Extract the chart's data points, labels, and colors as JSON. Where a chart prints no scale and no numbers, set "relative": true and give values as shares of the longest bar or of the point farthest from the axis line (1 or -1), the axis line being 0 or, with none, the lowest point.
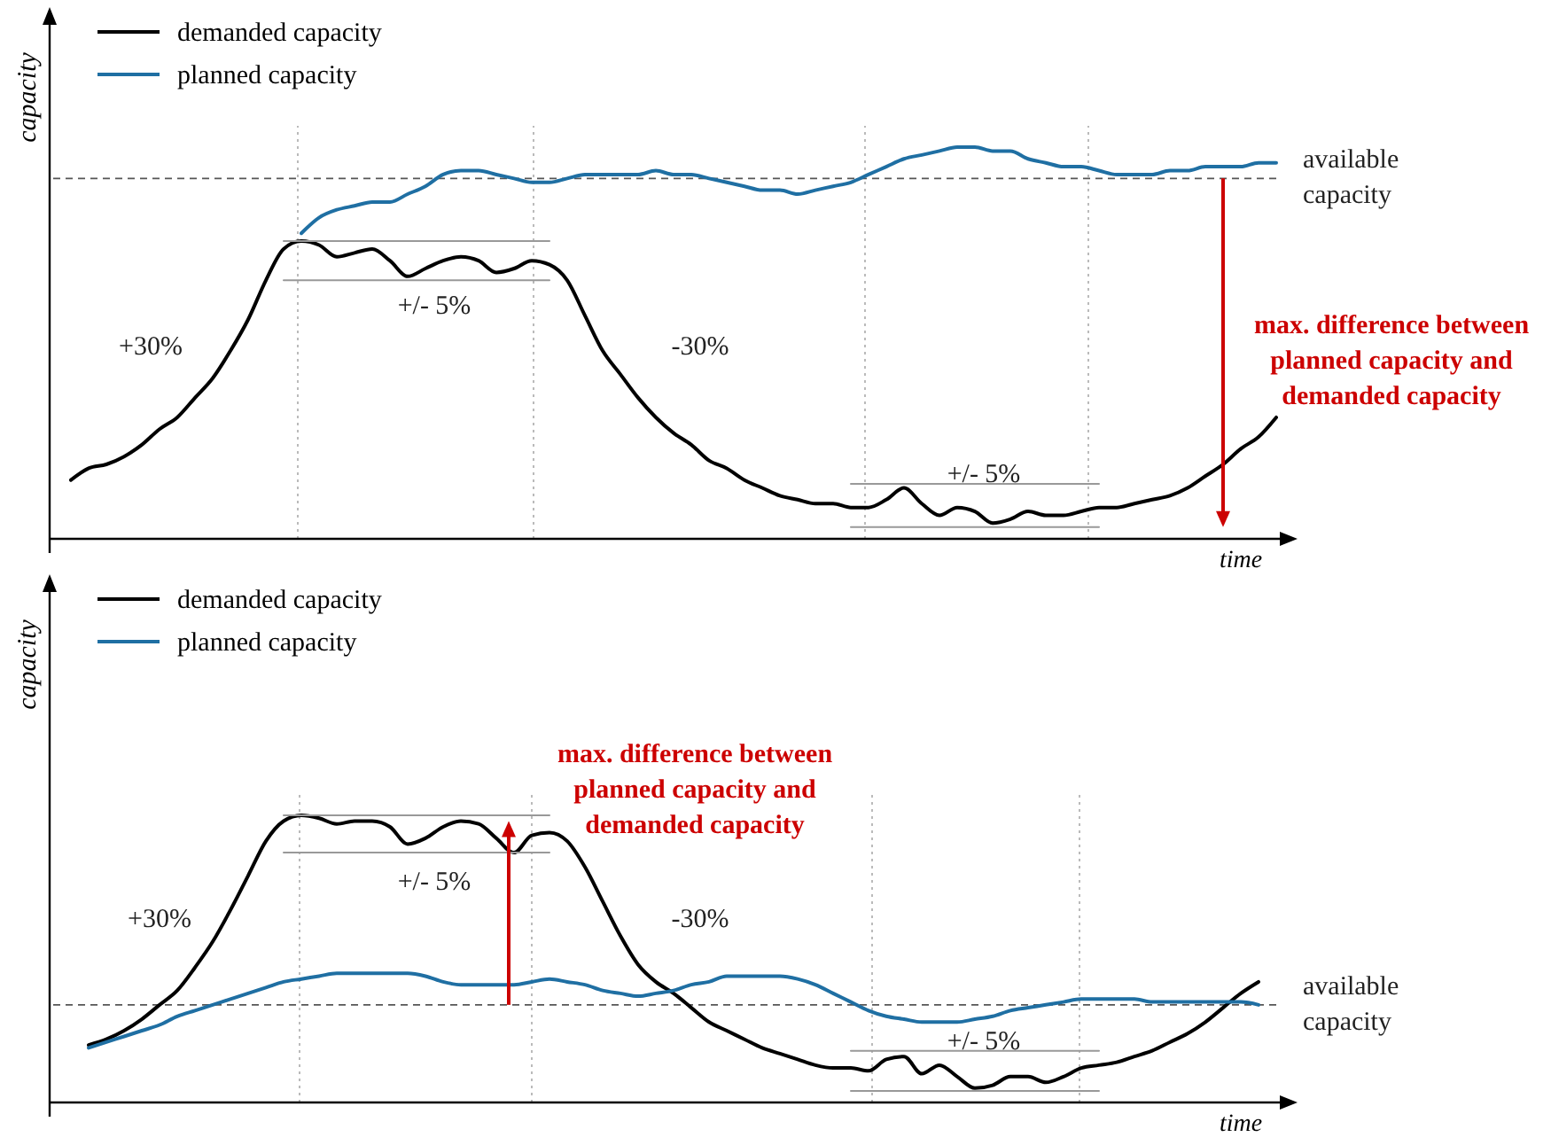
{
  "chart_data": [
    {
      "type": "line",
      "relative": true,
      "xlabel": "time",
      "ylabel": "capacity",
      "legend": "top left",
      "grid": "x",
      "categories": [
        null,
        null,
        null,
        null,
        null,
        null,
        null,
        null,
        null,
        null,
        null,
        null,
        null,
        null,
        null,
        null,
        null,
        null,
        null,
        null,
        null,
        null,
        null,
        null,
        null,
        null,
        null,
        null,
        null,
        null,
        null,
        null,
        null,
        null,
        null,
        null,
        null,
        null,
        null,
        null,
        null,
        null,
        null,
        null,
        null,
        null,
        null,
        null,
        null,
        null,
        null,
        null,
        null,
        null,
        null,
        null,
        null,
        null,
        null,
        null,
        null,
        null,
        null,
        null,
        null,
        null,
        null,
        null,
        null,
        null
      ],
      "series": [
        {
          "name": "demanded capacity",
          "color": "#000000",
          "values": [
            null,
            0.15,
            0.18,
            0.19,
            0.21,
            0.24,
            0.28,
            0.31,
            0.36,
            0.41,
            0.48,
            0.56,
            0.66,
            0.74,
            0.76,
            0.75,
            0.72,
            0.73,
            0.74,
            0.71,
            0.67,
            0.69,
            0.71,
            0.72,
            0.71,
            0.68,
            0.69,
            0.71,
            0.7,
            0.66,
            0.57,
            0.48,
            0.42,
            0.36,
            0.31,
            0.27,
            0.24,
            0.2,
            0.18,
            0.15,
            0.13,
            0.11,
            0.1,
            0.09,
            0.09,
            0.08,
            0.08,
            0.1,
            0.13,
            0.09,
            0.06,
            0.08,
            0.07,
            0.04,
            0.05,
            0.07,
            0.06,
            0.06,
            0.07,
            0.08,
            0.08,
            0.09,
            0.1,
            0.11,
            0.13,
            0.16,
            0.19,
            0.23,
            0.26,
            0.31
          ]
        },
        {
          "name": "planned capacity",
          "color": "#1f6fa3",
          "values": [
            null,
            null,
            null,
            null,
            null,
            null,
            null,
            null,
            null,
            null,
            null,
            null,
            null,
            null,
            0.78,
            0.82,
            0.84,
            0.85,
            0.86,
            0.86,
            0.88,
            0.9,
            0.93,
            0.94,
            0.94,
            0.93,
            0.92,
            0.91,
            0.91,
            0.92,
            0.93,
            0.93,
            0.93,
            0.93,
            0.94,
            0.93,
            0.93,
            0.92,
            0.91,
            0.9,
            0.89,
            0.89,
            0.88,
            0.89,
            0.9,
            0.91,
            0.93,
            0.95,
            0.97,
            0.98,
            0.99,
            1.0,
            1.0,
            0.99,
            0.99,
            0.97,
            0.96,
            0.95,
            0.95,
            0.94,
            0.93,
            0.93,
            0.93,
            0.94,
            0.94,
            0.95,
            0.95,
            0.95,
            0.96,
            0.96
          ]
        },
        {
          "color": "#999999",
          "values": [
            null,
            null,
            null,
            null,
            null,
            null,
            null,
            null,
            null,
            null,
            null,
            null,
            null,
            0.76,
            0.76,
            0.76,
            0.76,
            0.76,
            0.76,
            0.76,
            0.76,
            0.76,
            0.76,
            0.76,
            0.76,
            0.76,
            0.76,
            0.76,
            0.76,
            null,
            null,
            null,
            null,
            null,
            null,
            null,
            null,
            null,
            null,
            null,
            null,
            null,
            null,
            null,
            null,
            null,
            null,
            null,
            null,
            null,
            null,
            null,
            null,
            null,
            null,
            null,
            null,
            null,
            null,
            null,
            null,
            null,
            null,
            null,
            null,
            null,
            null,
            null,
            null,
            null
          ]
        },
        {
          "color": "#999999",
          "values": [
            null,
            null,
            null,
            null,
            null,
            null,
            null,
            null,
            null,
            null,
            null,
            null,
            null,
            0.66,
            0.66,
            0.66,
            0.66,
            0.66,
            0.66,
            0.66,
            0.66,
            0.66,
            0.66,
            0.66,
            0.66,
            0.66,
            0.66,
            0.66,
            0.66,
            null,
            null,
            null,
            null,
            null,
            null,
            null,
            null,
            null,
            null,
            null,
            null,
            null,
            null,
            null,
            null,
            null,
            null,
            null,
            null,
            null,
            null,
            null,
            null,
            null,
            null,
            null,
            null,
            null,
            null,
            null,
            null,
            null,
            null,
            null,
            null,
            null,
            null,
            null,
            null,
            null
          ]
        },
        {
          "color": "#999999",
          "values": [
            null,
            null,
            null,
            null,
            null,
            null,
            null,
            null,
            null,
            null,
            null,
            null,
            null,
            null,
            null,
            null,
            null,
            null,
            null,
            null,
            null,
            null,
            null,
            null,
            null,
            null,
            null,
            null,
            null,
            null,
            null,
            null,
            null,
            null,
            null,
            null,
            null,
            null,
            null,
            null,
            null,
            null,
            null,
            null,
            null,
            0.14,
            0.14,
            0.14,
            0.14,
            0.14,
            0.14,
            0.14,
            0.14,
            0.14,
            0.14,
            0.14,
            0.14,
            0.14,
            0.14,
            0.14,
            null,
            null,
            null,
            null,
            null,
            null,
            null,
            null,
            null,
            null
          ]
        },
        {
          "color": "#999999",
          "values": [
            null,
            null,
            null,
            null,
            null,
            null,
            null,
            null,
            null,
            null,
            null,
            null,
            null,
            null,
            null,
            null,
            null,
            null,
            null,
            null,
            null,
            null,
            null,
            null,
            null,
            null,
            null,
            null,
            null,
            null,
            null,
            null,
            null,
            null,
            null,
            null,
            null,
            null,
            null,
            null,
            null,
            null,
            null,
            null,
            null,
            0.03,
            0.03,
            0.03,
            0.03,
            0.03,
            0.03,
            0.03,
            0.03,
            0.03,
            0.03,
            0.03,
            0.03,
            0.03,
            0.03,
            0.03,
            null,
            null,
            null,
            null,
            null,
            null,
            null,
            null,
            null,
            null
          ]
        }
      ],
      "ref_lines": [
        {
          "axis": "y",
          "value": 0.92,
          "label": "available capacity",
          "color": "#555555",
          "line_style": "dashed"
        }
      ],
      "annotations": [
        "+30%",
        "+/- 5%",
        "-30%",
        "+/- 5%",
        "max. difference between planned capacity and demanded capacity"
      ]
    },
    {
      "type": "line",
      "relative": true,
      "xlabel": "time",
      "ylabel": "capacity",
      "legend": "top left",
      "grid": "x",
      "categories": [
        null,
        null,
        null,
        null,
        null,
        null,
        null,
        null,
        null,
        null,
        null,
        null,
        null,
        null,
        null,
        null,
        null,
        null,
        null,
        null,
        null,
        null,
        null,
        null,
        null,
        null,
        null,
        null,
        null,
        null,
        null,
        null,
        null,
        null,
        null,
        null,
        null,
        null,
        null,
        null,
        null,
        null,
        null,
        null,
        null,
        null,
        null,
        null,
        null,
        null,
        null,
        null,
        null,
        null,
        null,
        null,
        null,
        null,
        null,
        null,
        null,
        null,
        null,
        null,
        null,
        null,
        null,
        null,
        null,
        null
      ],
      "series": [
        {
          "name": "demanded capacity",
          "color": "#000000",
          "values": [
            null,
            null,
            0.2,
            0.22,
            0.25,
            0.29,
            0.34,
            0.39,
            0.47,
            0.56,
            0.67,
            0.79,
            0.91,
            0.98,
            1.0,
            0.99,
            0.97,
            0.98,
            0.98,
            0.96,
            0.9,
            0.92,
            0.96,
            0.98,
            0.97,
            0.92,
            0.87,
            0.93,
            0.94,
            0.91,
            0.82,
            0.7,
            0.58,
            0.48,
            0.42,
            0.38,
            0.33,
            0.28,
            0.25,
            0.22,
            0.19,
            0.17,
            0.15,
            0.13,
            0.12,
            0.12,
            0.11,
            0.15,
            0.16,
            0.1,
            0.13,
            0.09,
            0.05,
            0.06,
            0.09,
            0.09,
            0.07,
            0.09,
            0.12,
            0.13,
            0.14,
            0.16,
            0.18,
            0.21,
            0.24,
            0.28,
            0.33,
            0.38,
            0.42,
            null
          ]
        },
        {
          "name": "planned capacity",
          "color": "#1f6fa3",
          "values": [
            null,
            null,
            0.19,
            0.21,
            0.23,
            0.25,
            0.27,
            0.3,
            0.32,
            0.34,
            0.36,
            0.38,
            0.4,
            0.42,
            0.43,
            0.44,
            0.45,
            0.45,
            0.45,
            0.45,
            0.45,
            0.44,
            0.42,
            0.41,
            0.41,
            0.41,
            0.41,
            0.42,
            0.43,
            0.42,
            0.41,
            0.39,
            0.38,
            0.37,
            0.38,
            0.39,
            0.41,
            0.42,
            0.44,
            0.44,
            0.44,
            0.44,
            0.43,
            0.41,
            0.38,
            0.35,
            0.32,
            0.3,
            0.29,
            0.28,
            0.28,
            0.28,
            0.29,
            0.3,
            0.32,
            0.33,
            0.34,
            0.35,
            0.36,
            0.36,
            0.36,
            0.36,
            0.35,
            0.35,
            0.35,
            0.35,
            0.35,
            0.35,
            0.34,
            null
          ]
        },
        {
          "color": "#999999",
          "values": [
            null,
            null,
            null,
            null,
            null,
            null,
            null,
            null,
            null,
            null,
            null,
            null,
            null,
            1.0,
            1.0,
            1.0,
            1.0,
            1.0,
            1.0,
            1.0,
            1.0,
            1.0,
            1.0,
            1.0,
            1.0,
            1.0,
            1.0,
            1.0,
            1.0,
            null,
            null,
            null,
            null,
            null,
            null,
            null,
            null,
            null,
            null,
            null,
            null,
            null,
            null,
            null,
            null,
            null,
            null,
            null,
            null,
            null,
            null,
            null,
            null,
            null,
            null,
            null,
            null,
            null,
            null,
            null,
            null,
            null,
            null,
            null,
            null,
            null,
            null,
            null,
            null,
            null
          ]
        },
        {
          "color": "#999999",
          "values": [
            null,
            null,
            null,
            null,
            null,
            null,
            null,
            null,
            null,
            null,
            null,
            null,
            null,
            0.87,
            0.87,
            0.87,
            0.87,
            0.87,
            0.87,
            0.87,
            0.87,
            0.87,
            0.87,
            0.87,
            0.87,
            0.87,
            0.87,
            0.87,
            0.87,
            null,
            null,
            null,
            null,
            null,
            null,
            null,
            null,
            null,
            null,
            null,
            null,
            null,
            null,
            null,
            null,
            null,
            null,
            null,
            null,
            null,
            null,
            null,
            null,
            null,
            null,
            null,
            null,
            null,
            null,
            null,
            null,
            null,
            null,
            null,
            null,
            null,
            null,
            null,
            null,
            null
          ]
        },
        {
          "color": "#999999",
          "values": [
            null,
            null,
            null,
            null,
            null,
            null,
            null,
            null,
            null,
            null,
            null,
            null,
            null,
            null,
            null,
            null,
            null,
            null,
            null,
            null,
            null,
            null,
            null,
            null,
            null,
            null,
            null,
            null,
            null,
            null,
            null,
            null,
            null,
            null,
            null,
            null,
            null,
            null,
            null,
            null,
            null,
            null,
            null,
            null,
            null,
            0.18,
            0.18,
            0.18,
            0.18,
            0.18,
            0.18,
            0.18,
            0.18,
            0.18,
            0.18,
            0.18,
            0.18,
            0.18,
            0.18,
            0.18,
            null,
            null,
            null,
            null,
            null,
            null,
            null,
            null,
            null,
            null
          ]
        },
        {
          "color": "#999999",
          "values": [
            null,
            null,
            null,
            null,
            null,
            null,
            null,
            null,
            null,
            null,
            null,
            null,
            null,
            null,
            null,
            null,
            null,
            null,
            null,
            null,
            null,
            null,
            null,
            null,
            null,
            null,
            null,
            null,
            null,
            null,
            null,
            null,
            null,
            null,
            null,
            null,
            null,
            null,
            null,
            null,
            null,
            null,
            null,
            null,
            null,
            0.04,
            0.04,
            0.04,
            0.04,
            0.04,
            0.04,
            0.04,
            0.04,
            0.04,
            0.04,
            0.04,
            0.04,
            0.04,
            0.04,
            0.04,
            null,
            null,
            null,
            null,
            null,
            null,
            null,
            null,
            null,
            null
          ]
        }
      ],
      "ref_lines": [
        {
          "axis": "y",
          "value": 0.34,
          "label": "available capacity",
          "color": "#555555",
          "line_style": "dashed"
        }
      ],
      "annotations": [
        "+30%",
        "+/- 5%",
        "-30%",
        "+/- 5%",
        "max. difference between planned capacity and demanded capacity"
      ]
    }
  ]
}
